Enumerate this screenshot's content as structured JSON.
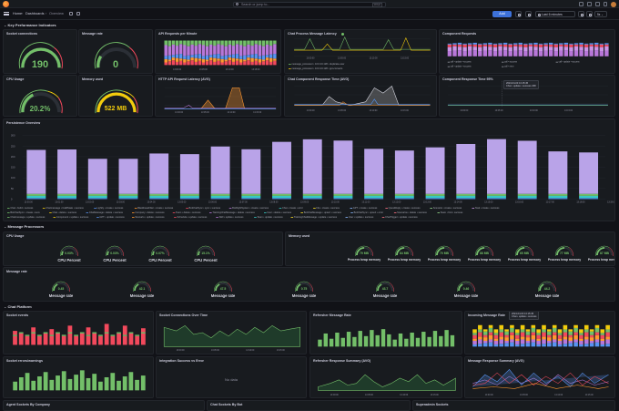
{
  "topbar": {
    "search_placeholder": "Search or jump to...",
    "search_shortcut": "ctrl+k"
  },
  "nav": {
    "crumbs": [
      "Home",
      "Dashboards",
      "Overview"
    ],
    "add_label": "Add",
    "time_range": "Last 6 minutes",
    "refresh_label": "5s"
  },
  "rows": {
    "kpi": "Key Performance Indicators",
    "persistence": "Persistence Overview",
    "message_processors": "Message Processors",
    "chat_platform": "Chat Platform"
  },
  "kpi": {
    "socket_connections": {
      "title": "Socket connections",
      "value": "190",
      "color": "#73bf69"
    },
    "message_rate": {
      "title": "Message rate",
      "value": "0",
      "color": "#73bf69"
    },
    "cpu_usage": {
      "title": "CPU Usage",
      "value": "20.2%",
      "color": "#73bf69"
    },
    "memory_used": {
      "title": "Memory used",
      "value": "522 MB",
      "color": "#f2cc0c"
    },
    "api_requests": {
      "title": "API Requests per Minute"
    },
    "http_latency": {
      "title": "HTTP API Request Latency (AVG)"
    },
    "chat_latency": {
      "title": "Chat Process Message Latency",
      "legend": [
        "message_processor • 10.0.23.128 • duplicate-user",
        "message_processor • 10.0.23.128 • ppt-converts"
      ]
    },
    "component_requests": {
      "title": "Component Requests"
    },
    "chat_component_response": {
      "title": "Chat Component Response Time (AVG)"
    },
    "component_response_95": {
      "title": "Component Response Time 95%",
      "tooltip": "2024-04-03 13:15:45",
      "tooltip_row": "Chat • update • success  238"
    }
  },
  "persistence": {
    "title": "Persistence Overview",
    "y_ticks": [
      "300",
      "250",
      "200",
      "150",
      "100",
      "50",
      "0"
    ],
    "x_labels": [
      "13:00:00",
      "13:01:00",
      "13:02:00",
      "13:03:00",
      "13:04:00",
      "13:05:00",
      "13:06:00",
      "13:07:00",
      "13:08:00",
      "13:09:00",
      "13:10:00",
      "13:11:00",
      "13:12:00",
      "13:13:00",
      "13:14:00",
      "13:15:00",
      "13:16:00",
      "13:17:00",
      "13:18:00",
      "13:19:00"
    ],
    "legend_rows": [
      [
        "Chat • build • success",
        "Chatmessage • buildState • success",
        "Lightly • create • success",
        "BlackbaseFilter • create • success",
        "BotChatSync • sync • success",
        "BotRightSystem • create • success",
        "Chat • create • error",
        "File • create • success",
        "GPT • create • success",
        "QuestReply • create • success",
        "Scenario • create • success",
        "Task • create • success"
      ],
      [
        "BotChatSync • create • sucs",
        "Chat • delete • success",
        "ChatMessage • delete • success",
        "Company • delete • success",
        "Team • delete • success",
        "TrainingChatMessage • delete • success",
        "User • delete • success",
        "BotChatMessage • upsert • success",
        "BotChatSync • upsert • error",
        "Scenarios • delete • success",
        "Team • find • success"
      ],
      [
        "Chatmessage • update • success",
        "Component • update • success",
        "GPT • update • success",
        "Scenario • update • success",
        "Schedule • update • success",
        "Skill • update • success",
        "Team • update • success",
        "TrainingChatMessage • update • success",
        "User • update • success",
        "ChatTrigger • update • success"
      ]
    ]
  },
  "processors": {
    "cpu_title": "CPU Usage",
    "memory_title": "Memory used",
    "rate_title": "Message rate",
    "cpu": [
      {
        "label": "CPU Percent",
        "value": "0.03%"
      },
      {
        "label": "CPU Percent",
        "value": "0.03%"
      },
      {
        "label": "CPU Percent",
        "value": "0.07%"
      },
      {
        "label": "CPU Percent",
        "value": "15.1%"
      }
    ],
    "memory": [
      {
        "label": "Process heap memory",
        "value": "79 MB"
      },
      {
        "label": "Process heap memory",
        "value": "84 MB"
      },
      {
        "label": "Process heap memory",
        "value": "70 MB"
      },
      {
        "label": "Process heap memory",
        "value": "88 MB"
      },
      {
        "label": "Process heap memory",
        "value": "65 MB"
      },
      {
        "label": "Process heap memory",
        "value": "77 MB"
      },
      {
        "label": "Process heap memory",
        "value": "87 MB"
      }
    ],
    "rates": [
      {
        "label": "Message rate",
        "value": "0.45"
      },
      {
        "label": "Message rate",
        "value": "42.1"
      },
      {
        "label": "Message rate",
        "value": "47.5"
      },
      {
        "label": "Message rate",
        "value": "0.75"
      },
      {
        "label": "Message rate",
        "value": "43.7"
      },
      {
        "label": "Message rate",
        "value": "0.46"
      },
      {
        "label": "Message rate",
        "value": "44.2"
      }
    ]
  },
  "chat_platform": {
    "socket_events": "Socket events",
    "socket_over_time": "Socket Connections Over Time",
    "refresher_rate": "Refresher Message Rate",
    "incoming_rate": "Incoming Message Rate",
    "socket_errors": "Socket errors/warnings",
    "integration_errors": "Integration Success vs Error",
    "no_data": "No data",
    "refresher_response": "Refresher Response Summary (AVG)",
    "message_response": "Message Response Summary (AVG)",
    "tooltip_time": "2024-04-03 13:15:45",
    "tooltip_row": "Chat • update • success",
    "bottom_titles": [
      "Agent Sockets By Company",
      "Chat Sockets By Bot",
      "Superadmin Sockets"
    ]
  }
}
